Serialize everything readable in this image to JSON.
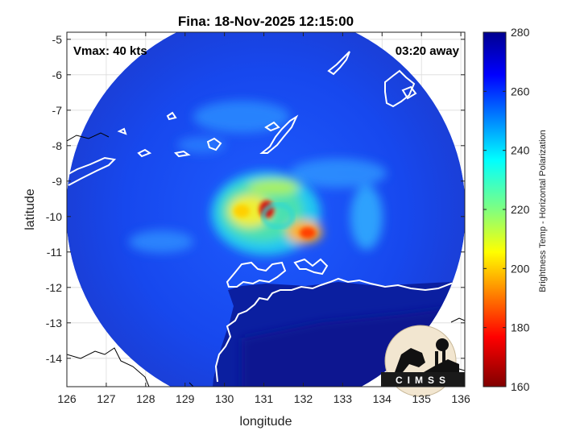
{
  "title": "Fina: 18-Nov-2025 12:15:00",
  "annotations": {
    "vmax": "Vmax: 40 kts",
    "time_away": "03:20 away"
  },
  "axes": {
    "xlabel": "longitude",
    "ylabel": "latitude",
    "x_ticks": [
      "126",
      "127",
      "128",
      "129",
      "130",
      "131",
      "132",
      "133",
      "134",
      "135",
      "136"
    ],
    "y_ticks": [
      "-5",
      "-6",
      "-7",
      "-8",
      "-9",
      "-10",
      "-11",
      "-12",
      "-13",
      "-14"
    ],
    "xlim": [
      126,
      136.1
    ],
    "ylim": [
      -14.8,
      -4.8
    ],
    "grid": true
  },
  "colorbar": {
    "label": "Brightness Temp - Horizontal Polarization",
    "ticks": [
      "280",
      "260",
      "240",
      "220",
      "200",
      "180",
      "160"
    ],
    "range": [
      160,
      280
    ],
    "colormap": "jet"
  },
  "logo": {
    "text": "CIMSS"
  },
  "storm": {
    "center_lon": 131.1,
    "center_lat": -9.8
  }
}
